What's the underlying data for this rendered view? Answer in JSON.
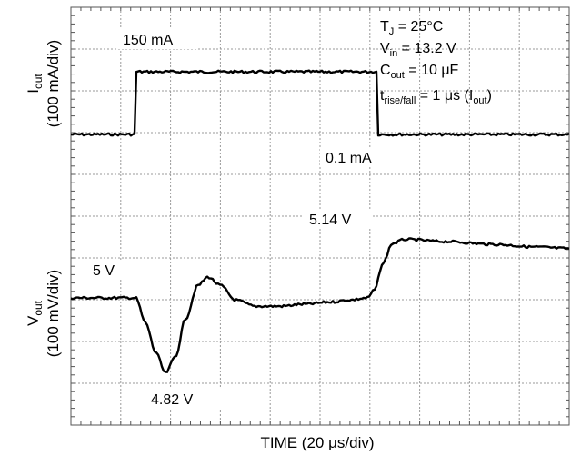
{
  "chart_data": {
    "type": "line",
    "grid": true,
    "xlabel": "TIME (20 μs/div)",
    "x_divisions": 10,
    "y_divisions": 10,
    "conditions": {
      "tj": "T",
      "tj_sub": "J",
      "tj_val": " = 25°C",
      "vin": "V",
      "vin_sub": "in",
      "vin_val": " = 13.2 V",
      "cout": "C",
      "cout_sub": "out",
      "cout_val": " = 10 μF",
      "trise": "t",
      "trise_sub": "rise/fall",
      "trise_val": " = 1 μs (I",
      "trise_paren_sub": "out",
      "trise_close": ")"
    },
    "series": [
      {
        "name": "Iout",
        "axis_main": "I",
        "axis_sub": "out",
        "axis_scale": "(100 mA/div)",
        "step_on_div": 1.3,
        "step_off_div": 6.1,
        "low_label": "0.1 mA",
        "high_label": "150 mA",
        "low_value_mA": 0.1,
        "high_value_mA": 150
      },
      {
        "name": "Vout",
        "axis_main": "V",
        "axis_sub": "out",
        "axis_scale": "(100 mV/div)",
        "nominal_label": "5 V",
        "undershoot_label": "4.82 V",
        "overshoot_label": "5.14 V",
        "nominal_value_V": 5.0,
        "undershoot_value_V": 4.82,
        "overshoot_value_V": 5.14
      }
    ]
  }
}
